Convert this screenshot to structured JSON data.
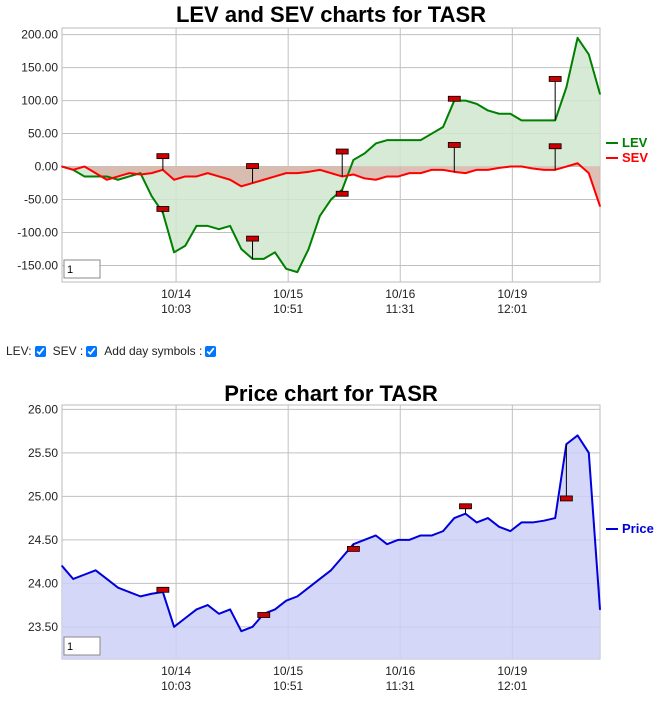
{
  "colors": {
    "lev": "#008000",
    "sev": "#ff0000",
    "price": "#0000dd",
    "lev_fill": "#cfe6cf",
    "sev_fill": "#d8b4a8",
    "price_fill": "#cdd0f6",
    "grid": "#c0c0c0",
    "marker": "#cc0000"
  },
  "controls": {
    "lev_label": "LEV:",
    "sev_label": "SEV :",
    "day_label": "Add day symbols :",
    "lev_checked": true,
    "sev_checked": true,
    "day_checked": true
  },
  "x_ticks": [
    {
      "date": "10/14",
      "time": "10:03"
    },
    {
      "date": "10/15",
      "time": "10:51"
    },
    {
      "date": "10/16",
      "time": "11:31"
    },
    {
      "date": "10/19",
      "time": "12:01"
    }
  ],
  "chart_data": [
    {
      "type": "area",
      "title": "LEV and SEV charts for TASR",
      "ylim": [
        -175,
        210
      ],
      "y_ticks": [
        "200.00",
        "150.00",
        "100.00",
        "50.00",
        "0.00",
        "-50.00",
        "-100.00",
        "-150.00"
      ],
      "y_tick_values": [
        200,
        150,
        100,
        50,
        0,
        -50,
        -100,
        -150
      ],
      "zoom_value": "1",
      "grid": true,
      "legend_position": "right",
      "x": [
        0,
        1,
        2,
        3,
        4,
        5,
        6,
        7,
        8,
        9,
        10,
        11,
        12,
        13,
        14,
        15,
        16,
        17,
        18,
        19,
        20,
        21,
        22,
        23,
        24,
        25,
        26,
        27,
        28,
        29,
        30,
        31,
        32,
        33,
        34,
        35,
        36,
        37,
        38,
        39,
        40,
        41,
        42,
        43,
        44,
        45,
        46,
        47,
        48
      ],
      "series": [
        {
          "name": "LEV",
          "values": [
            0,
            -5,
            -15,
            -15,
            -15,
            -20,
            -15,
            -10,
            -45,
            -70,
            -130,
            -120,
            -90,
            -90,
            -95,
            -90,
            -125,
            -140,
            -140,
            -130,
            -155,
            -160,
            -125,
            -75,
            -50,
            -35,
            10,
            20,
            35,
            40,
            40,
            40,
            40,
            50,
            60,
            100,
            100,
            95,
            85,
            80,
            80,
            70,
            70,
            70,
            70,
            120,
            195,
            170,
            110
          ]
        },
        {
          "name": "SEV",
          "values": [
            0,
            -5,
            0,
            -10,
            -20,
            -15,
            -10,
            -12,
            -10,
            -5,
            -20,
            -15,
            -15,
            -10,
            -15,
            -20,
            -30,
            -25,
            -20,
            -15,
            -10,
            -10,
            -8,
            -5,
            -10,
            -15,
            -12,
            -18,
            -20,
            -15,
            -15,
            -10,
            -10,
            -5,
            -5,
            -8,
            -10,
            -5,
            -5,
            -2,
            0,
            0,
            -3,
            -5,
            -5,
            0,
            5,
            -10,
            -60
          ]
        }
      ],
      "day_markers": [
        {
          "series": "SEV",
          "x": 9,
          "y": 15
        },
        {
          "series": "LEV",
          "x": 9,
          "y": -65
        },
        {
          "series": "SEV",
          "x": 17,
          "y": 0
        },
        {
          "series": "LEV",
          "x": 17,
          "y": -110
        },
        {
          "series": "SEV",
          "x": 25,
          "y": 22
        },
        {
          "series": "LEV",
          "x": 25,
          "y": -42
        },
        {
          "series": "LEV",
          "x": 35,
          "y": 102
        },
        {
          "series": "SEV",
          "x": 35,
          "y": 32
        },
        {
          "series": "LEV",
          "x": 44,
          "y": 132
        },
        {
          "series": "SEV",
          "x": 44,
          "y": 30
        }
      ]
    },
    {
      "type": "area",
      "title": "Price chart for TASR",
      "ylim": [
        23.13,
        26.05
      ],
      "y_ticks": [
        "26.00",
        "25.50",
        "25.00",
        "24.50",
        "24.00",
        "23.50"
      ],
      "y_tick_values": [
        26.0,
        25.5,
        25.0,
        24.5,
        24.0,
        23.5
      ],
      "zoom_value": "1",
      "grid": true,
      "legend_position": "right",
      "x": [
        0,
        1,
        2,
        3,
        4,
        5,
        6,
        7,
        8,
        9,
        10,
        11,
        12,
        13,
        14,
        15,
        16,
        17,
        18,
        19,
        20,
        21,
        22,
        23,
        24,
        25,
        26,
        27,
        28,
        29,
        30,
        31,
        32,
        33,
        34,
        35,
        36,
        37,
        38,
        39,
        40,
        41,
        42,
        43,
        44,
        45,
        46,
        47,
        48
      ],
      "series": [
        {
          "name": "Price",
          "values": [
            24.2,
            24.05,
            24.1,
            24.15,
            24.05,
            23.95,
            23.9,
            23.85,
            23.88,
            23.9,
            23.5,
            23.6,
            23.7,
            23.75,
            23.65,
            23.7,
            23.45,
            23.5,
            23.65,
            23.7,
            23.8,
            23.85,
            23.95,
            24.05,
            24.15,
            24.3,
            24.45,
            24.5,
            24.55,
            24.45,
            24.5,
            24.5,
            24.55,
            24.55,
            24.6,
            24.75,
            24.8,
            24.7,
            24.75,
            24.65,
            24.6,
            24.7,
            24.7,
            24.72,
            24.75,
            25.6,
            25.7,
            25.5,
            23.7
          ]
        }
      ],
      "day_markers": [
        {
          "series": "Price",
          "x": 9,
          "y": 23.92
        },
        {
          "series": "Price",
          "x": 18,
          "y": 23.63
        },
        {
          "series": "Price",
          "x": 26,
          "y": 24.39
        },
        {
          "series": "Price",
          "x": 36,
          "y": 24.88
        },
        {
          "series": "Price",
          "x": 45,
          "y": 24.97
        }
      ]
    }
  ]
}
